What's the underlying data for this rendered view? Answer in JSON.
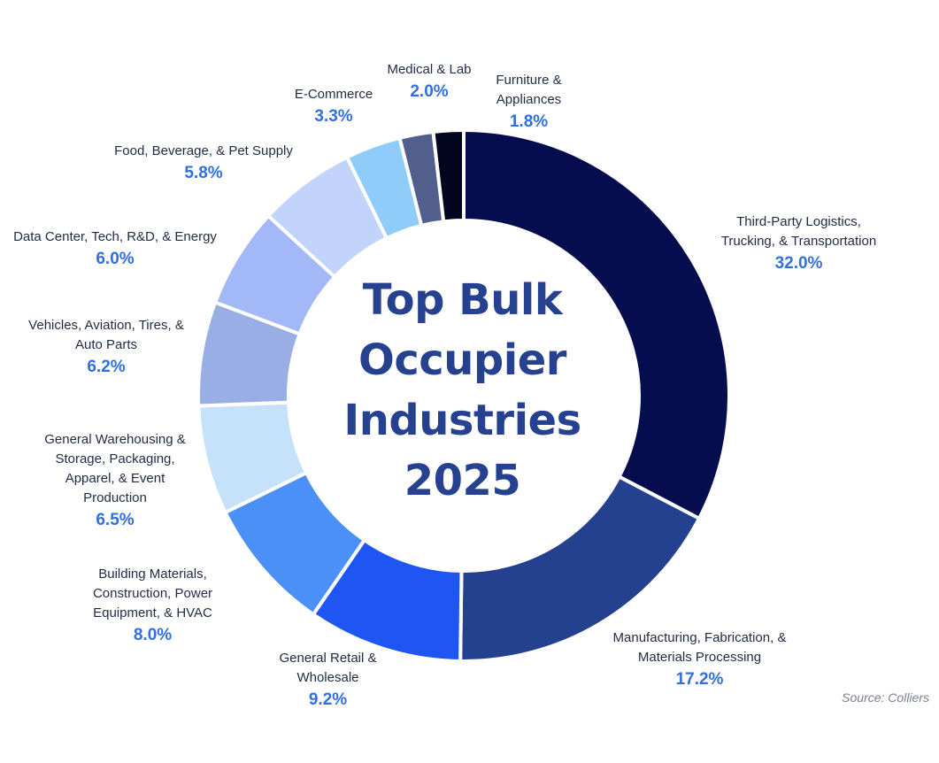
{
  "chart_data": {
    "type": "donut",
    "title": [
      "Top Bulk",
      "Occupier",
      "Industries",
      "2025"
    ],
    "source": "Source: Colliers",
    "unit": "%",
    "slices": [
      {
        "label": [
          "Third-Party Logistics,",
          "Trucking, & Transportation"
        ],
        "value": 32.0,
        "pct_label": "32.0%",
        "color": "#050d4f"
      },
      {
        "label": [
          "Manufacturing, Fabrication, &",
          "Materials Processing"
        ],
        "value": 17.2,
        "pct_label": "17.2%",
        "color": "#24418f"
      },
      {
        "label": [
          "General Retail &",
          "Wholesale"
        ],
        "value": 9.2,
        "pct_label": "9.2%",
        "color": "#1f55f2"
      },
      {
        "label": [
          "Building Materials,",
          "Construction, Power",
          "Equipment, & HVAC"
        ],
        "value": 8.0,
        "pct_label": "8.0%",
        "color": "#4b90f7"
      },
      {
        "label": [
          "General Warehousing &",
          "Storage, Packaging,",
          "Apparel, & Event",
          "Production"
        ],
        "value": 6.5,
        "pct_label": "6.5%",
        "color": "#c6e2fb"
      },
      {
        "label": [
          "Vehicles, Aviation, Tires, &",
          "Auto Parts"
        ],
        "value": 6.2,
        "pct_label": "6.2%",
        "color": "#98aee5"
      },
      {
        "label": [
          "Data Center, Tech, R&D, & Energy"
        ],
        "value": 6.0,
        "pct_label": "6.0%",
        "color": "#a3b8f7"
      },
      {
        "label": [
          "Food, Beverage, & Pet Supply"
        ],
        "value": 5.8,
        "pct_label": "5.8%",
        "color": "#c2d4fb"
      },
      {
        "label": [
          "E-Commerce"
        ],
        "value": 3.3,
        "pct_label": "3.3%",
        "color": "#8fccf9"
      },
      {
        "label": [
          "Medical & Lab"
        ],
        "value": 2.0,
        "pct_label": "2.0%",
        "color": "#525f8c"
      },
      {
        "label": [
          "Furniture &",
          "Appliances"
        ],
        "value": 1.8,
        "pct_label": "1.8%",
        "color": "#03061e"
      }
    ]
  }
}
